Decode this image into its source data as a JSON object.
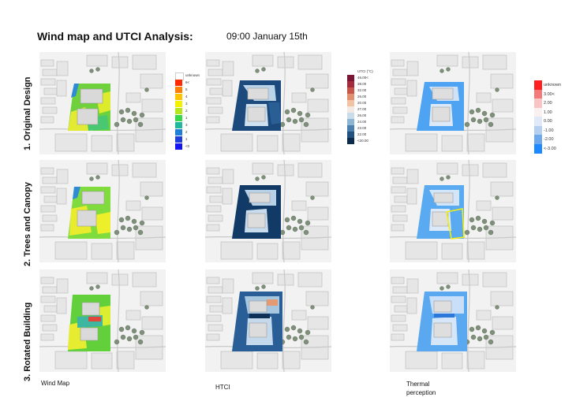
{
  "header": {
    "title": "Wind map and UTCI Analysis:",
    "subtitle": "09:00 January 15th"
  },
  "rows": [
    {
      "label": "1. Original Design"
    },
    {
      "label": "2. Trees and Canopy"
    },
    {
      "label": "3. Rotated Building"
    }
  ],
  "columns": [
    {
      "label": "Wind Map"
    },
    {
      "label": "HTCI"
    },
    {
      "label": "Thermal perception"
    }
  ],
  "legends": {
    "wind": {
      "header": "unknown",
      "items": [
        {
          "label": "6<",
          "color": "#ff2a00"
        },
        {
          "label": "5",
          "color": "#ff7f00"
        },
        {
          "label": "4",
          "color": "#ffc400"
        },
        {
          "label": "3",
          "color": "#f3f000"
        },
        {
          "label": "2",
          "color": "#b5e61d"
        },
        {
          "label": "1",
          "color": "#39d84a"
        },
        {
          "label": "3",
          "color": "#1fb89a"
        },
        {
          "label": "2",
          "color": "#1f7ed8"
        },
        {
          "label": "1",
          "color": "#1f3fd8"
        },
        {
          "label": "<0",
          "color": "#1515f0"
        }
      ]
    },
    "utci": {
      "header": "UTCI (°C)",
      "items": [
        {
          "label": "46.00<",
          "color": "#7a1533"
        },
        {
          "label": "38.00",
          "color": "#a32b3c"
        },
        {
          "label": "32.00",
          "color": "#c9564b"
        },
        {
          "label": "26.00",
          "color": "#e08f6f"
        },
        {
          "label": "20.00",
          "color": "#f1c3a4"
        },
        {
          "label": "27.00",
          "color": "#f4e9e2"
        },
        {
          "label": "26.00",
          "color": "#c8dce9"
        },
        {
          "label": "24.00",
          "color": "#8cb5d1"
        },
        {
          "label": "23.00",
          "color": "#4b80ae"
        },
        {
          "label": "22.00",
          "color": "#23517f"
        },
        {
          "label": "<20.00",
          "color": "#0d2b4d"
        }
      ]
    },
    "thermal": {
      "items": [
        {
          "label": "unknown",
          "color": "#ff2020"
        },
        {
          "label": "3.00<",
          "color": "#f47a7a"
        },
        {
          "label": "2.00",
          "color": "#f8c4c4"
        },
        {
          "label": "1.00",
          "color": "#fbf0f0"
        },
        {
          "label": "0.00",
          "color": "#dfe9f7"
        },
        {
          "label": "-1.00",
          "color": "#b4d0f1"
        },
        {
          "label": "-2.00",
          "color": "#6ea9ee"
        },
        {
          "label": "<-3.00",
          "color": "#1e88ff"
        }
      ]
    }
  },
  "colors": {
    "wind_green": "#7fdc3c",
    "wind_yellow": "#e9ec2e",
    "wind_blue": "#2f8bd6",
    "utci_dark": "#123a66",
    "utci_light": "#d8e6f2",
    "thermal_blue": "#4ea3f2",
    "thermal_light": "#d7e8fb",
    "highlight": "#f2ee10"
  }
}
